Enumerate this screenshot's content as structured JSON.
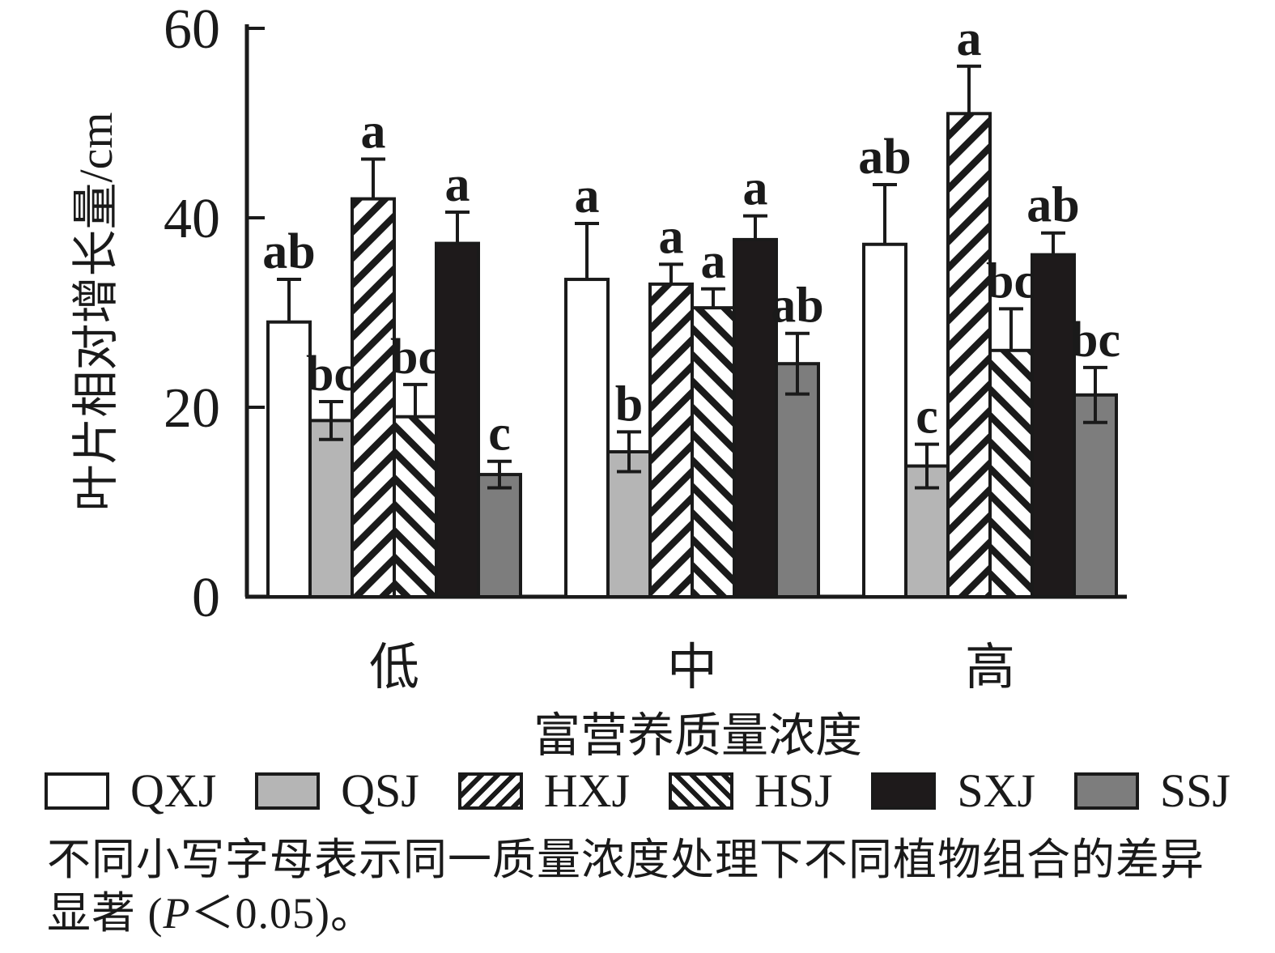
{
  "chart_data": {
    "type": "bar",
    "title": "",
    "categories": [
      "低",
      "中",
      "高"
    ],
    "xlabel": "富营养质量浓度",
    "ylabel": "叶片相对增长量/cm",
    "ylim": [
      0,
      60
    ],
    "yticks": [
      0,
      20,
      40,
      60
    ],
    "grid": false,
    "legend_position": "bottom",
    "series": [
      {
        "name": "QXJ",
        "fill": "white",
        "error_caps": "upper",
        "values": [
          29.0,
          33.5,
          37.2
        ],
        "errors": [
          4.5,
          5.9,
          6.3
        ],
        "letters": [
          "ab",
          "a",
          "ab"
        ]
      },
      {
        "name": "QSJ",
        "fill": "light_gray",
        "error_caps": "both",
        "values": [
          18.6,
          15.3,
          13.8
        ],
        "errors": [
          2.0,
          2.1,
          2.3
        ],
        "letters": [
          "bc",
          "b",
          "c"
        ]
      },
      {
        "name": "HXJ",
        "fill": "hatch_forward",
        "error_caps": "upper",
        "values": [
          42.0,
          33.0,
          51.0
        ],
        "errors": [
          4.2,
          2.1,
          5.0
        ],
        "letters": [
          "a",
          "a",
          "a"
        ]
      },
      {
        "name": "HSJ",
        "fill": "hatch_back",
        "error_caps": "upper",
        "values": [
          19.0,
          30.5,
          26.0
        ],
        "errors": [
          3.4,
          2.0,
          4.4
        ],
        "letters": [
          "bc",
          "a",
          "bc"
        ]
      },
      {
        "name": "SXJ",
        "fill": "black",
        "error_caps": "upper",
        "values": [
          37.3,
          37.7,
          36.1
        ],
        "errors": [
          3.3,
          2.5,
          2.3
        ],
        "letters": [
          "a",
          "a",
          "ab"
        ]
      },
      {
        "name": "SSJ",
        "fill": "dark_gray",
        "error_caps": "both",
        "values": [
          12.9,
          24.6,
          21.3
        ],
        "errors": [
          1.4,
          3.2,
          2.9
        ],
        "letters": [
          "c",
          "ab",
          "bc"
        ]
      }
    ],
    "colors": {
      "white": "#ffffff",
      "light_gray": "#b5b5b5",
      "dark_gray": "#7d7d7d",
      "black": "#1e1a1b",
      "stroke": "#1a1a1a"
    }
  },
  "caption": {
    "line1": "不同小写字母表示同一质量浓度处理下不同植物组合的差异",
    "line2_prefix": "显著 (",
    "line2_italic": "P",
    "line2_suffix": "＜0.05)。"
  }
}
